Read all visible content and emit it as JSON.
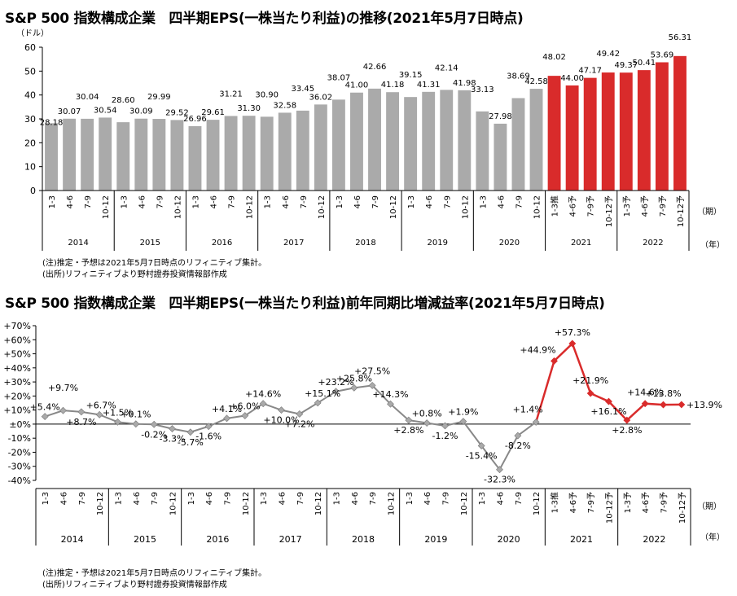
{
  "charts": {
    "eps": {
      "title": "S&P 500 指数構成企業　四半期EPS(一株当たり利益)の推移(2021年5月7日時点)",
      "notes": [
        "(注)推定・予想は2021年5月7日時点のリフィニティブ集計。",
        "(出所)リフィニティブより野村證券投資情報部作成"
      ],
      "y_unit_label": "（ドル）",
      "x_unit_label": "（期）",
      "year_unit_label": "（年）",
      "ylim": [
        0,
        60
      ],
      "y_ticks": [
        0,
        10,
        20,
        30,
        40,
        50,
        60
      ]
    },
    "growth": {
      "title": "S&P 500 指数構成企業　四半期EPS(一株当たり利益)前年同期比増減益率(2021年5月7日時点)",
      "notes": [
        "(注)推定・予想は2021年5月7日時点のリフィニティブ集計。",
        "(出所)リフィニティブより野村證券投資情報部作成"
      ],
      "x_unit_label": "（期）",
      "year_unit_label": "（年）",
      "ylim": [
        -40,
        70
      ],
      "y_tick_labels": [
        "+70%",
        "+60%",
        "+50%",
        "+40%",
        "+30%",
        "+20%",
        "+10%",
        "±0%",
        "-10%",
        "-20%",
        "-30%",
        "-40%"
      ]
    }
  },
  "chart_data": [
    {
      "type": "bar",
      "title": "S&P 500 指数構成企業　四半期EPS(一株当たり利益)の推移(2021年5月7日時点)",
      "ylabel": "（ドル）",
      "xlabel": "（期）",
      "ylim": [
        0,
        60
      ],
      "grid": false,
      "categories": [
        "1-3",
        "4-6",
        "7-9",
        "10-12",
        "1-3",
        "4-6",
        "7-9",
        "10-12",
        "1-3",
        "4-6",
        "7-9",
        "10-12",
        "1-3",
        "4-6",
        "7-9",
        "10-12",
        "1-3",
        "4-6",
        "7-9",
        "10-12",
        "1-3",
        "4-6",
        "7-9",
        "10-12",
        "1-3",
        "4-6",
        "7-9",
        "10-12",
        "1-3推",
        "4-6予",
        "7-9予",
        "10-12予",
        "1-3予",
        "4-6予",
        "7-9予",
        "10-12予"
      ],
      "years": [
        "2014",
        "2015",
        "2016",
        "2017",
        "2018",
        "2019",
        "2020",
        "2021",
        "2022"
      ],
      "values": [
        28.18,
        30.07,
        30.04,
        30.54,
        28.6,
        30.09,
        29.99,
        29.52,
        26.96,
        29.61,
        31.21,
        31.3,
        30.9,
        32.58,
        33.45,
        36.02,
        38.07,
        41.0,
        42.66,
        41.18,
        39.15,
        41.31,
        42.14,
        41.98,
        33.13,
        27.98,
        38.69,
        42.58,
        48.02,
        44.0,
        47.17,
        49.42,
        49.37,
        50.41,
        53.69,
        56.31
      ],
      "labels": [
        "28.18",
        "30.07",
        "30.04",
        "30.54",
        "28.60",
        "30.09",
        "29.99",
        "29.52",
        "26.96",
        "29.61",
        "31.21",
        "31.30",
        "30.90",
        "32.58",
        "33.45",
        "36.02",
        "38.07",
        "41.00",
        "42.66",
        "41.18",
        "39.15",
        "41.31",
        "42.14",
        "41.98",
        "33.13",
        "27.98",
        "38.69",
        "42.58",
        "48.02",
        "44.00",
        "47.17",
        "49.42",
        "49.37",
        "50.41",
        "53.69",
        "56.31"
      ],
      "colors": {
        "actual": "#aaaaaa",
        "estimate": "#d92b2b"
      },
      "estimate_start_index": 28
    },
    {
      "type": "line",
      "title": "S&P 500 指数構成企業　四半期EPS(一株当たり利益)前年同期比増減益率(2021年5月7日時点)",
      "xlabel": "（期）",
      "ylim": [
        -40,
        70
      ],
      "grid": false,
      "categories": [
        "1-3",
        "4-6",
        "7-9",
        "10-12",
        "1-3",
        "4-6",
        "7-9",
        "10-12",
        "1-3",
        "4-6",
        "7-9",
        "10-12",
        "1-3",
        "4-6",
        "7-9",
        "10-12",
        "1-3",
        "4-6",
        "7-9",
        "10-12",
        "1-3",
        "4-6",
        "7-9",
        "10-12",
        "1-3",
        "4-6",
        "7-9",
        "10-12",
        "1-3推",
        "4-6予",
        "7-9予",
        "10-12予",
        "1-3予",
        "4-6予",
        "7-9予",
        "10-12予"
      ],
      "years": [
        "2014",
        "2015",
        "2016",
        "2017",
        "2018",
        "2019",
        "2020",
        "2021",
        "2022"
      ],
      "values": [
        5.4,
        9.7,
        8.7,
        6.7,
        1.5,
        0.1,
        -0.2,
        -3.3,
        -5.7,
        -1.6,
        4.1,
        6.0,
        14.6,
        10.0,
        7.2,
        15.1,
        23.2,
        25.8,
        27.5,
        14.3,
        2.8,
        0.8,
        -1.2,
        1.9,
        -15.4,
        -32.3,
        -8.2,
        1.4,
        44.9,
        57.3,
        21.9,
        16.1,
        2.8,
        14.6,
        13.8,
        13.9
      ],
      "labels": [
        "+5.4%",
        "+9.7%",
        "+8.7%",
        "+6.7%",
        "+1.5%",
        "+0.1%",
        "-0.2%",
        "-3.3%",
        "-5.7%",
        "-1.6%",
        "+4.1%",
        "+6.0%",
        "+14.6%",
        "+10.0%",
        "+7.2%",
        "+15.1%",
        "+23.2%",
        "+25.8%",
        "+27.5%",
        "+14.3%",
        "+2.8%",
        "+0.8%",
        "-1.2%",
        "+1.9%",
        "-15.4%",
        "-32.3%",
        "-8.2%",
        "+1.4%",
        "+44.9%",
        "+57.3%",
        "+21.9%",
        "+16.1%",
        "+2.8%",
        "+14.6%",
        "+13.8%",
        "+13.9%"
      ],
      "colors": {
        "actual": "#888888",
        "marker": "#aaaaaa",
        "estimate": "#d92b2b"
      },
      "estimate_start_index": 28
    }
  ]
}
